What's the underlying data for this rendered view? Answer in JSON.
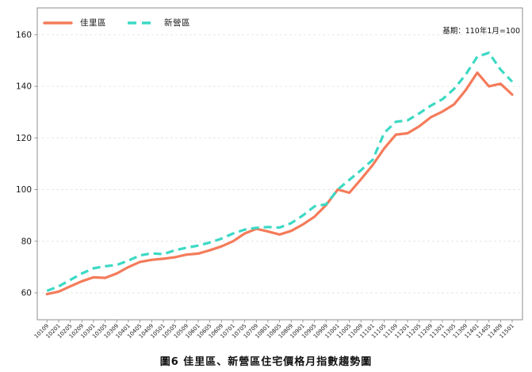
{
  "annotation": "基期：110年1月=100",
  "caption": "圖6 佳里區、新營區住宅價格月指數趨勢圖",
  "colors": {
    "jiali": "#f47b5a",
    "xinying": "#3cd9c4",
    "grid": "#e6e6e6",
    "spine": "#8c8c8c",
    "tick_text": "#1a1a1a"
  },
  "legend": {
    "items": [
      {
        "label": "佳里區",
        "style": "solid"
      },
      {
        "label": "新營區",
        "style": "dashed"
      }
    ]
  },
  "chart_data": {
    "type": "line",
    "title": "",
    "xlabel": "",
    "ylabel": "",
    "grid": "horizontal dashed",
    "legend_position": "top-left",
    "ylim": [
      50,
      170
    ],
    "yticks": [
      60,
      80,
      100,
      120,
      140,
      160
    ],
    "x": [
      "10109",
      "10201",
      "10205",
      "10209",
      "10301",
      "10305",
      "10309",
      "10401",
      "10405",
      "10409",
      "10501",
      "10505",
      "10509",
      "10601",
      "10605",
      "10609",
      "10701",
      "10705",
      "10709",
      "10801",
      "10805",
      "10809",
      "10901",
      "10905",
      "10909",
      "11001",
      "11005",
      "11009",
      "11101",
      "11105",
      "11109",
      "11201",
      "11205",
      "11209",
      "11301",
      "11305",
      "11309",
      "11401",
      "11405",
      "11409",
      "11501"
    ],
    "series": [
      {
        "name": "佳里區",
        "style": "solid",
        "values": [
          59.5,
          60.5,
          62.5,
          64.5,
          66,
          65.8,
          67.5,
          70,
          72,
          72.8,
          73.2,
          73.8,
          74.8,
          75.2,
          76.5,
          78,
          80,
          83,
          84.8,
          83.8,
          82.6,
          84,
          86.5,
          89.5,
          94,
          100,
          98.8,
          104,
          109.5,
          116,
          121.3,
          121.8,
          124.5,
          128,
          130.2,
          133,
          138.5,
          145.3,
          140,
          141,
          136.8
        ]
      },
      {
        "name": "新營區",
        "style": "dashed",
        "values": [
          60.8,
          62.5,
          65,
          67.5,
          69.5,
          70.3,
          70.8,
          72.5,
          74.5,
          75.3,
          75,
          76.5,
          77.5,
          78.3,
          79.5,
          81,
          83,
          84.5,
          85.2,
          85.5,
          85.3,
          87,
          90,
          93.5,
          94.3,
          100,
          103.8,
          107.5,
          111.5,
          122,
          126.3,
          126.8,
          129.5,
          132.5,
          135,
          139,
          144.5,
          151.5,
          153,
          146.5,
          141.8
        ]
      }
    ]
  }
}
